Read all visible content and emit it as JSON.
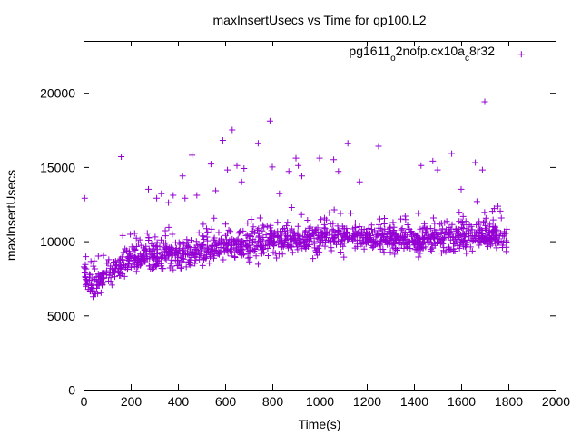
{
  "chart_data": {
    "type": "scatter",
    "title": "maxInsertUsecs vs Time for qp100.L2",
    "xlabel": "Time(s)",
    "ylabel": "maxInsertUsecs",
    "xlim": [
      0,
      2000
    ],
    "ylim": [
      0,
      23500
    ],
    "xticks": [
      "0",
      "200",
      "400",
      "600",
      "800",
      "1000",
      "1200",
      "1400",
      "1600",
      "1800",
      "2000"
    ],
    "yticks": [
      "0",
      "5000",
      "10000",
      "15000",
      "20000"
    ],
    "grid": false,
    "legend_position": "top-right",
    "marker": "+",
    "series": [
      {
        "name_parts": [
          "pg1611",
          "o",
          "2nofp.cx10a",
          "c",
          "8r32"
        ],
        "color": "#9400d3",
        "trend": {
          "x": [
            0,
            20,
            40,
            60,
            80,
            100,
            120,
            150,
            200,
            250,
            300,
            400,
            500,
            600,
            700,
            800,
            900,
            1000,
            1100,
            1200,
            1300,
            1400,
            1500,
            1600,
            1700,
            1800
          ],
          "y": [
            8200,
            7200,
            7100,
            7200,
            7500,
            7700,
            7900,
            8300,
            8800,
            9000,
            9000,
            9000,
            9300,
            9600,
            9800,
            10000,
            10100,
            10200,
            10300,
            10300,
            10200,
            10100,
            10100,
            10200,
            10300,
            10400
          ]
        },
        "outliers": {
          "x": [
            5,
            160,
            275,
            310,
            330,
            360,
            380,
            420,
            430,
            460,
            480,
            540,
            560,
            590,
            610,
            630,
            650,
            670,
            680,
            740,
            790,
            800,
            830,
            870,
            900,
            910,
            925,
            1000,
            1060,
            1080,
            1120,
            1170,
            1250,
            1430,
            1480,
            1500,
            1560,
            1600,
            1660,
            1690,
            1700,
            1740
          ],
          "y": [
            12900,
            15700,
            13500,
            12900,
            13200,
            12600,
            13100,
            14400,
            12900,
            15800,
            13100,
            15200,
            13400,
            16800,
            14800,
            17500,
            15100,
            14000,
            14900,
            16600,
            18100,
            15000,
            13200,
            14700,
            15600,
            15100,
            14400,
            15600,
            15500,
            14700,
            16600,
            14000,
            16400,
            15100,
            15400,
            14800,
            15900,
            13500,
            15300,
            14800,
            19400,
            12200
          ]
        },
        "legend_sample": {
          "x": 1855,
          "y": 22600
        }
      }
    ]
  }
}
